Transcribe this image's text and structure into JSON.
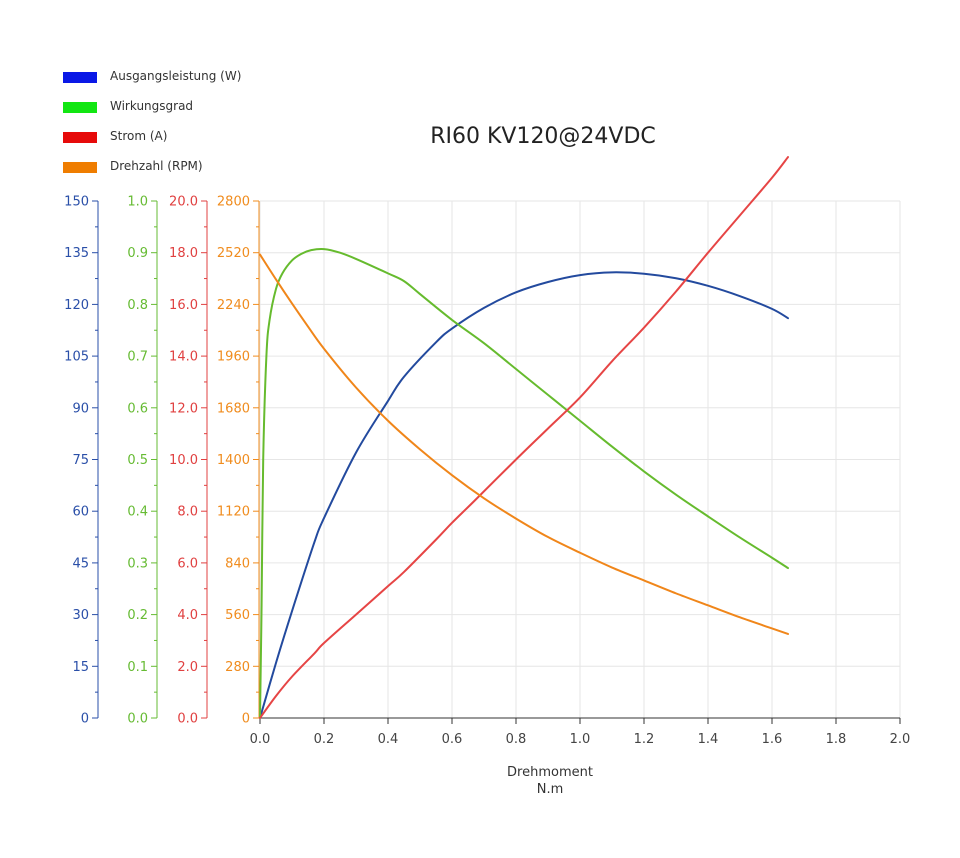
{
  "title": "RI60 KV120@24VDC",
  "xlabel": [
    "Drehmoment",
    "N.m"
  ],
  "legend": [
    {
      "label": "Ausgangsleistung (W)",
      "color": "#0a18e6"
    },
    {
      "label": "Wirkungsgrad",
      "color": "#12e612"
    },
    {
      "label": "Strom (A)",
      "color": "#e60a0a"
    },
    {
      "label": "Drehzahl (RPM)",
      "color": "#ef7d00"
    }
  ],
  "chart_data": {
    "type": "line",
    "title": "RI60 KV120@24VDC",
    "xlabel": "Drehmoment N.m",
    "x_axis": {
      "min": 0,
      "max": 2.0,
      "ticks": [
        "0.0",
        "0.2",
        "0.4",
        "0.6",
        "0.8",
        "1.0",
        "1.2",
        "1.4",
        "1.6",
        "1.8",
        "2.0"
      ]
    },
    "grid": true,
    "legend_position": "top-left",
    "y_axes": [
      {
        "name": "Ausgangsleistung (W)",
        "color": "#2a4fa8",
        "min": 0,
        "max": 150,
        "ticks": [
          "0",
          "15",
          "30",
          "45",
          "60",
          "75",
          "90",
          "105",
          "120",
          "135",
          "150"
        ]
      },
      {
        "name": "Wirkungsgrad",
        "color": "#66bb33",
        "min": 0,
        "max": 1.0,
        "ticks": [
          "0.0",
          "0.1",
          "0.2",
          "0.3",
          "0.4",
          "0.5",
          "0.6",
          "0.7",
          "0.8",
          "0.9",
          "1.0"
        ]
      },
      {
        "name": "Strom (A)",
        "color": "#e04040",
        "min": 0,
        "max": 20,
        "ticks": [
          "0.0",
          "2.0",
          "4.0",
          "6.0",
          "8.0",
          "10.0",
          "12.0",
          "14.0",
          "16.0",
          "18.0",
          "20.0"
        ]
      },
      {
        "name": "Drehzahl (RPM)",
        "color": "#f08c1e",
        "min": 0,
        "max": 2800,
        "ticks": [
          "0",
          "280",
          "560",
          "840",
          "1120",
          "1400",
          "1680",
          "1960",
          "2240",
          "2520",
          "2800"
        ]
      }
    ],
    "series": [
      {
        "name": "Ausgangsleistung (W)",
        "axis": 0,
        "color": "#234a9e",
        "x": [
          0.0,
          0.05,
          0.1,
          0.17,
          0.2,
          0.3,
          0.4,
          0.45,
          0.55,
          0.6,
          0.7,
          0.8,
          0.9,
          1.0,
          1.1,
          1.2,
          1.3,
          1.4,
          1.5,
          1.6,
          1.65
        ],
        "y": [
          0,
          16,
          31,
          51,
          58,
          77,
          92,
          99,
          109,
          113,
          119,
          123.5,
          126.5,
          128.5,
          129.3,
          128.9,
          127.6,
          125.4,
          122.4,
          118.7,
          116
        ]
      },
      {
        "name": "Wirkungsgrad",
        "axis": 1,
        "color": "#66bb2e",
        "x": [
          0.0,
          0.005,
          0.01,
          0.02,
          0.03,
          0.05,
          0.07,
          0.1,
          0.13,
          0.16,
          0.2,
          0.25,
          0.3,
          0.4,
          0.45,
          0.5,
          0.6,
          0.7,
          0.8,
          0.9,
          1.0,
          1.1,
          1.2,
          1.3,
          1.4,
          1.5,
          1.6,
          1.65
        ],
        "y": [
          0.0,
          0.22,
          0.5,
          0.7,
          0.77,
          0.83,
          0.86,
          0.885,
          0.898,
          0.905,
          0.907,
          0.9,
          0.888,
          0.86,
          0.845,
          0.82,
          0.77,
          0.725,
          0.675,
          0.625,
          0.575,
          0.525,
          0.477,
          0.432,
          0.39,
          0.349,
          0.31,
          0.29
        ]
      },
      {
        "name": "Strom (A)",
        "axis": 2,
        "color": "#e64545",
        "x": [
          0.0,
          0.05,
          0.1,
          0.17,
          0.2,
          0.3,
          0.4,
          0.45,
          0.55,
          0.6,
          0.67,
          0.8,
          0.9,
          1.0,
          1.1,
          1.2,
          1.3,
          1.4,
          1.5,
          1.6,
          1.65
        ],
        "y": [
          0.0,
          0.85,
          1.6,
          2.5,
          2.9,
          4.0,
          5.1,
          5.65,
          6.9,
          7.55,
          8.4,
          10.0,
          11.2,
          12.4,
          13.8,
          15.1,
          16.5,
          18.0,
          19.45,
          20.9,
          21.7
        ]
      },
      {
        "name": "Drehzahl (RPM)",
        "axis": 3,
        "color": "#f0861a",
        "x": [
          0.0,
          0.05,
          0.1,
          0.15,
          0.2,
          0.3,
          0.4,
          0.5,
          0.6,
          0.7,
          0.8,
          0.9,
          1.0,
          1.1,
          1.2,
          1.3,
          1.4,
          1.5,
          1.6,
          1.65
        ],
        "y": [
          2510,
          2375,
          2245,
          2120,
          2000,
          1790,
          1610,
          1455,
          1315,
          1190,
          1080,
          980,
          895,
          815,
          745,
          675,
          610,
          545,
          485,
          455
        ]
      }
    ]
  }
}
